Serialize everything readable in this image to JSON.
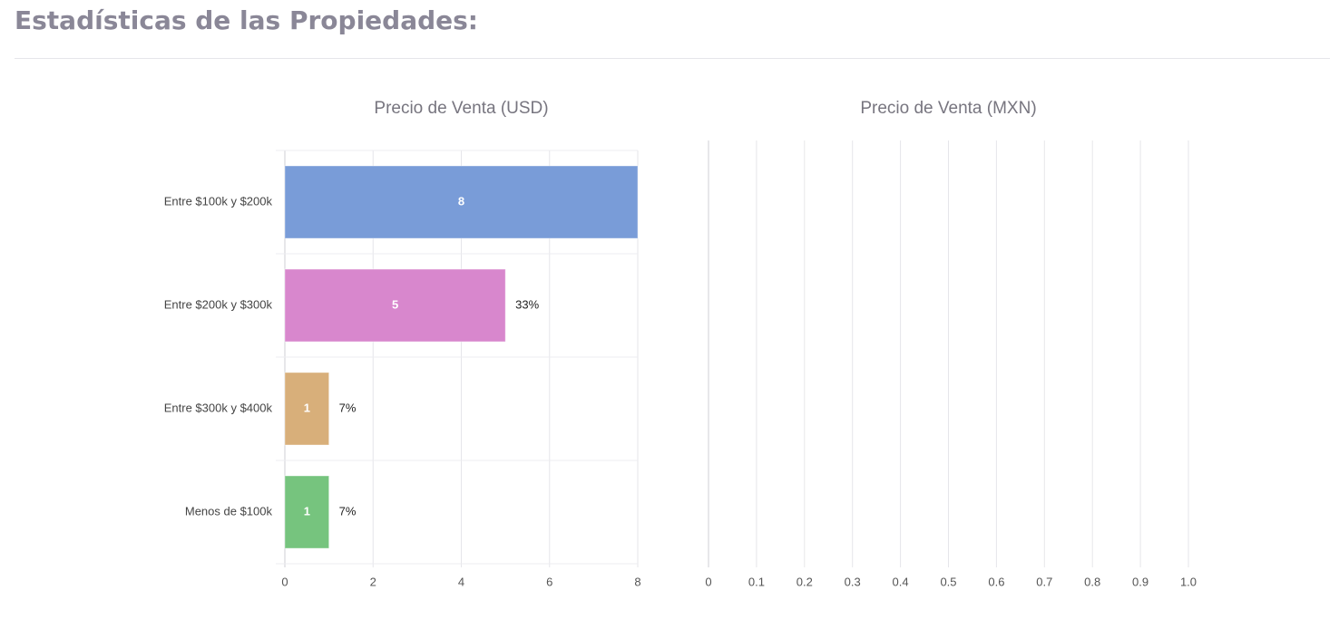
{
  "header": {
    "title": "Estadísticas de las Propiedades:"
  },
  "chart_data": [
    {
      "type": "bar",
      "orientation": "horizontal",
      "title": "Precio de Venta (USD)",
      "categories": [
        "Entre $100k y $200k",
        "Entre $200k y $300k",
        "Entre $300k y $400k",
        "Menos de $100k"
      ],
      "values": [
        8,
        5,
        1,
        1
      ],
      "percentage_labels": [
        null,
        "33%",
        "7%",
        "7%"
      ],
      "colors": [
        "#799cd8",
        "#d887cd",
        "#d8af7a",
        "#76c47e"
      ],
      "xlim": [
        0,
        8
      ],
      "xticks": [
        0,
        2,
        4,
        6,
        8
      ],
      "grid": true
    },
    {
      "type": "bar",
      "orientation": "horizontal",
      "title": "Precio de Venta (MXN)",
      "categories": [],
      "values": [],
      "xlim": [
        0,
        1
      ],
      "xticks": [
        0,
        0.1,
        0.2,
        0.3,
        0.4,
        0.5,
        0.6,
        0.7,
        0.8,
        0.9,
        {
          "value": 1,
          "label": "1.0"
        }
      ],
      "grid": true
    }
  ]
}
